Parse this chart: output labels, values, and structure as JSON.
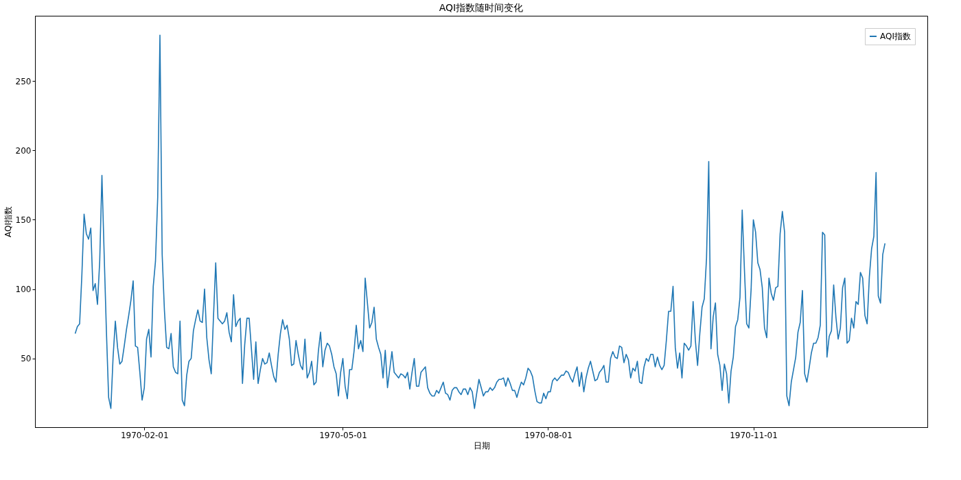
{
  "chart_data": {
    "type": "line",
    "title": "AQI指数随时间变化",
    "xlabel": "日期",
    "ylabel": "AQI指数",
    "xlim": [
      "1969-12-14",
      "1971-01-18"
    ],
    "xticks": [
      "1970-02-01",
      "1970-05-01",
      "1970-08-01",
      "1970-11-01"
    ],
    "ylim": [
      0.5,
      297
    ],
    "yticks": [
      50,
      100,
      150,
      200,
      250
    ],
    "grid": false,
    "legend": "top right",
    "line_style": "solid",
    "series": [
      {
        "name": "AQI指数",
        "color": "#1f77b4",
        "x": [
          "1970-01-01",
          "1970-01-02",
          "1970-01-03",
          "1970-01-04",
          "1970-01-05",
          "1970-01-06",
          "1970-01-07",
          "1970-01-08",
          "1970-01-09",
          "1970-01-10",
          "1970-01-11",
          "1970-01-12",
          "1970-01-13",
          "1970-01-14",
          "1970-01-15",
          "1970-01-16",
          "1970-01-17",
          "1970-01-18",
          "1970-01-19",
          "1970-01-20",
          "1970-01-21",
          "1970-01-22",
          "1970-01-23",
          "1970-01-24",
          "1970-01-25",
          "1970-01-26",
          "1970-01-27",
          "1970-01-28",
          "1970-01-29",
          "1970-01-30",
          "1970-01-31",
          "1970-02-01",
          "1970-02-02",
          "1970-02-03",
          "1970-02-04",
          "1970-02-05",
          "1970-02-06",
          "1970-02-07",
          "1970-02-08",
          "1970-02-09",
          "1970-02-10",
          "1970-02-11",
          "1970-02-12",
          "1970-02-13",
          "1970-02-14",
          "1970-02-15",
          "1970-02-16",
          "1970-02-17",
          "1970-02-18",
          "1970-02-19",
          "1970-02-20",
          "1970-02-21",
          "1970-02-22",
          "1970-02-23",
          "1970-02-24",
          "1970-02-25",
          "1970-02-26",
          "1970-02-27",
          "1970-02-28",
          "1970-03-01",
          "1970-03-02",
          "1970-03-03",
          "1970-03-04",
          "1970-03-05",
          "1970-03-06",
          "1970-03-07",
          "1970-03-08",
          "1970-03-09",
          "1970-03-10",
          "1970-03-11",
          "1970-03-12",
          "1970-03-13",
          "1970-03-14",
          "1970-03-15",
          "1970-03-16",
          "1970-03-17",
          "1970-03-18",
          "1970-03-19",
          "1970-03-20",
          "1970-03-21",
          "1970-03-22",
          "1970-03-23",
          "1970-03-24",
          "1970-03-25",
          "1970-03-26",
          "1970-03-27",
          "1970-03-28",
          "1970-03-29",
          "1970-03-30",
          "1970-03-31",
          "1970-04-01",
          "1970-04-02",
          "1970-04-03",
          "1970-04-04",
          "1970-04-05",
          "1970-04-06",
          "1970-04-07",
          "1970-04-08",
          "1970-04-09",
          "1970-04-10",
          "1970-04-11",
          "1970-04-12",
          "1970-04-13",
          "1970-04-14",
          "1970-04-15",
          "1970-04-16",
          "1970-04-17",
          "1970-04-18",
          "1970-04-19",
          "1970-04-20",
          "1970-04-21",
          "1970-04-22",
          "1970-04-23",
          "1970-04-24",
          "1970-04-25",
          "1970-04-26",
          "1970-04-27",
          "1970-04-28",
          "1970-04-29",
          "1970-04-30",
          "1970-05-01",
          "1970-05-02",
          "1970-05-03",
          "1970-05-04",
          "1970-05-05",
          "1970-05-06",
          "1970-05-07",
          "1970-05-08",
          "1970-05-09",
          "1970-05-10",
          "1970-05-11",
          "1970-05-12",
          "1970-05-13",
          "1970-05-14",
          "1970-05-15",
          "1970-05-16",
          "1970-05-17",
          "1970-05-18",
          "1970-05-19",
          "1970-05-20",
          "1970-05-21",
          "1970-05-22",
          "1970-05-23",
          "1970-05-24",
          "1970-05-25",
          "1970-05-26",
          "1970-05-27",
          "1970-05-28",
          "1970-05-29",
          "1970-05-30",
          "1970-05-31",
          "1970-06-01",
          "1970-06-02",
          "1970-06-03",
          "1970-06-04",
          "1970-06-05",
          "1970-06-06",
          "1970-06-07",
          "1970-06-08",
          "1970-06-09",
          "1970-06-10",
          "1970-06-11",
          "1970-06-12",
          "1970-06-13",
          "1970-06-14",
          "1970-06-15",
          "1970-06-16",
          "1970-06-17",
          "1970-06-18",
          "1970-06-19",
          "1970-06-20",
          "1970-06-21",
          "1970-06-22",
          "1970-06-23",
          "1970-06-24",
          "1970-06-25",
          "1970-06-26",
          "1970-06-27",
          "1970-06-28",
          "1970-06-29",
          "1970-06-30",
          "1970-07-01",
          "1970-07-02",
          "1970-07-03",
          "1970-07-04",
          "1970-07-05",
          "1970-07-06",
          "1970-07-07",
          "1970-07-08",
          "1970-07-09",
          "1970-07-10",
          "1970-07-11",
          "1970-07-12",
          "1970-07-13",
          "1970-07-14",
          "1970-07-15",
          "1970-07-16",
          "1970-07-17",
          "1970-07-18",
          "1970-07-19",
          "1970-07-20",
          "1970-07-21",
          "1970-07-22",
          "1970-07-23",
          "1970-07-24",
          "1970-07-25",
          "1970-07-26",
          "1970-07-27",
          "1970-07-28",
          "1970-07-29",
          "1970-07-30",
          "1970-07-31",
          "1970-08-01",
          "1970-08-02",
          "1970-08-03",
          "1970-08-04",
          "1970-08-05",
          "1970-08-06",
          "1970-08-07",
          "1970-08-08",
          "1970-08-09",
          "1970-08-10",
          "1970-08-11",
          "1970-08-12",
          "1970-08-13",
          "1970-08-14",
          "1970-08-15",
          "1970-08-16",
          "1970-08-17",
          "1970-08-18",
          "1970-08-19",
          "1970-08-20",
          "1970-08-21",
          "1970-08-22",
          "1970-08-23",
          "1970-08-24",
          "1970-08-25",
          "1970-08-26",
          "1970-08-27",
          "1970-08-28",
          "1970-08-29",
          "1970-08-30",
          "1970-08-31",
          "1970-09-01",
          "1970-09-02",
          "1970-09-03",
          "1970-09-04",
          "1970-09-05",
          "1970-09-06",
          "1970-09-07",
          "1970-09-08",
          "1970-09-09",
          "1970-09-10",
          "1970-09-11",
          "1970-09-12",
          "1970-09-13",
          "1970-09-14",
          "1970-09-15",
          "1970-09-16",
          "1970-09-17",
          "1970-09-18",
          "1970-09-19",
          "1970-09-20",
          "1970-09-21",
          "1970-09-22",
          "1970-09-23",
          "1970-09-24",
          "1970-09-25",
          "1970-09-26",
          "1970-09-27",
          "1970-09-28",
          "1970-09-29",
          "1970-09-30",
          "1970-10-01",
          "1970-10-02",
          "1970-10-03",
          "1970-10-04",
          "1970-10-05",
          "1970-10-06",
          "1970-10-07",
          "1970-10-08",
          "1970-10-09",
          "1970-10-10",
          "1970-10-11",
          "1970-10-12",
          "1970-10-13",
          "1970-10-14",
          "1970-10-15",
          "1970-10-16",
          "1970-10-17",
          "1970-10-18",
          "1970-10-19",
          "1970-10-20",
          "1970-10-21",
          "1970-10-22",
          "1970-10-23",
          "1970-10-24",
          "1970-10-25",
          "1970-10-26",
          "1970-10-27",
          "1970-10-28",
          "1970-10-29",
          "1970-10-30",
          "1970-10-31",
          "1970-11-01",
          "1970-11-02",
          "1970-11-03",
          "1970-11-04",
          "1970-11-05",
          "1970-11-06",
          "1970-11-07",
          "1970-11-08",
          "1970-11-09",
          "1970-11-10",
          "1970-11-11",
          "1970-11-12",
          "1970-11-13",
          "1970-11-14",
          "1970-11-15",
          "1970-11-16",
          "1970-11-17",
          "1970-11-18",
          "1970-11-19",
          "1970-11-20",
          "1970-11-21",
          "1970-11-22",
          "1970-11-23",
          "1970-11-24",
          "1970-11-25",
          "1970-11-26",
          "1970-11-27",
          "1970-11-28",
          "1970-11-29",
          "1970-11-30",
          "1970-12-01",
          "1970-12-02",
          "1970-12-03",
          "1970-12-04",
          "1970-12-05",
          "1970-12-06",
          "1970-12-07",
          "1970-12-08",
          "1970-12-09",
          "1970-12-10",
          "1970-12-11",
          "1970-12-12",
          "1970-12-13",
          "1970-12-14",
          "1970-12-15",
          "1970-12-16",
          "1970-12-17",
          "1970-12-18",
          "1970-12-19",
          "1970-12-20",
          "1970-12-21",
          "1970-12-22",
          "1970-12-23",
          "1970-12-24",
          "1970-12-25",
          "1970-12-26",
          "1970-12-27",
          "1970-12-28",
          "1970-12-29",
          "1970-12-30"
        ],
        "values": [
          68,
          73,
          75,
          110,
          154,
          140,
          136,
          144,
          99,
          104,
          89,
          120,
          182,
          125,
          70,
          22,
          14,
          51,
          77,
          58,
          46,
          48,
          59,
          71,
          81,
          92,
          106,
          59,
          58,
          40,
          20,
          29,
          64,
          71,
          51,
          102,
          120,
          166,
          283,
          125,
          85,
          58,
          57,
          68,
          44,
          40,
          39,
          77,
          20,
          16,
          38,
          48,
          50,
          70,
          78,
          85,
          77,
          76,
          100,
          65,
          49,
          39,
          80,
          119,
          79,
          77,
          75,
          77,
          83,
          69,
          62,
          96,
          73,
          77,
          79,
          32,
          60,
          79,
          79,
          57,
          35,
          62,
          32,
          42,
          50,
          46,
          47,
          54,
          45,
          37,
          33,
          53,
          68,
          78,
          71,
          74,
          64,
          45,
          46,
          63,
          53,
          45,
          42,
          64,
          36,
          40,
          48,
          31,
          33,
          55,
          69,
          44,
          56,
          61,
          59,
          53,
          44,
          39,
          23,
          40,
          50,
          30,
          21,
          42,
          42,
          55,
          74,
          57,
          63,
          55,
          108,
          90,
          72,
          76,
          87,
          64,
          58,
          53,
          36,
          56,
          29,
          42,
          55,
          40,
          38,
          36,
          39,
          38,
          36,
          40,
          28,
          40,
          50,
          30,
          30,
          40,
          42,
          44,
          29,
          25,
          23,
          23,
          27,
          25,
          29,
          33,
          25,
          24,
          20,
          27,
          29,
          29,
          26,
          24,
          28,
          28,
          24,
          29,
          26,
          14,
          25,
          35,
          29,
          23,
          26,
          26,
          29,
          27,
          29,
          33,
          35,
          35,
          36,
          30,
          36,
          32,
          27,
          27,
          22,
          28,
          33,
          31,
          36,
          43,
          41,
          37,
          27,
          19,
          18,
          18,
          25,
          21,
          26,
          26,
          34,
          36,
          34,
          36,
          38,
          38,
          41,
          40,
          36,
          33,
          39,
          44,
          30,
          40,
          26,
          36,
          43,
          48,
          41,
          34,
          35,
          40,
          42,
          45,
          33,
          33,
          50,
          55,
          51,
          50,
          59,
          58,
          47,
          53,
          49,
          36,
          43,
          41,
          48,
          33,
          32,
          44,
          50,
          48,
          53,
          53,
          44,
          51,
          45,
          42,
          45,
          63,
          84,
          84,
          102,
          58,
          43,
          54,
          36,
          61,
          59,
          56,
          59,
          91,
          63,
          45,
          68,
          87,
          93,
          122,
          192,
          57,
          80,
          90,
          53,
          45,
          27,
          46,
          39,
          18,
          41,
          51,
          73,
          78,
          94,
          157,
          114,
          75,
          72,
          100,
          150,
          141,
          119,
          114,
          101,
          72,
          65,
          108,
          97,
          92,
          101,
          102,
          140,
          156,
          141,
          23,
          16,
          33,
          42,
          51,
          69,
          76,
          99,
          39,
          33,
          43,
          54,
          61,
          61,
          65,
          74,
          141,
          139,
          51,
          66,
          70,
          103,
          80,
          64,
          72,
          101,
          108,
          61,
          63,
          79,
          72,
          91,
          89,
          112,
          108,
          81,
          75,
          109,
          129,
          138,
          184,
          95,
          90,
          125,
          133
        ]
      }
    ]
  }
}
